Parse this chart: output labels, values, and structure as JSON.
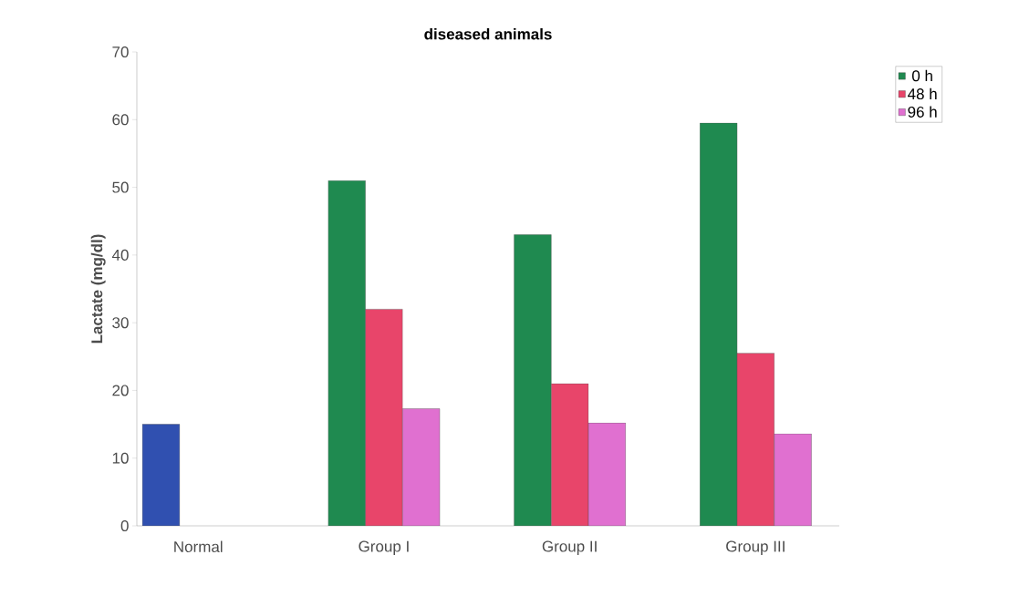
{
  "chart_data": {
    "type": "bar",
    "title": "diseased animals",
    "ylabel": "Lactate (mg/dl)",
    "categories": [
      "Normal",
      "Group I",
      "Group II",
      "Group III"
    ],
    "series": [
      {
        "name": "0 h",
        "color": "#1f8a50",
        "colors": [
          "#3050b0",
          "#1f8a50",
          "#1f8a50",
          "#1f8a50"
        ],
        "values": [
          15,
          51,
          43,
          59.5
        ]
      },
      {
        "name": "48 h",
        "color": "#e8456a",
        "values": [
          null,
          32,
          21,
          25.5
        ]
      },
      {
        "name": "96 h",
        "color": "#e070d0",
        "values": [
          null,
          17.3,
          15.2,
          13.6
        ]
      }
    ],
    "ylim": [
      0,
      70
    ],
    "yticks": [
      0,
      10,
      20,
      30,
      40,
      50,
      60,
      70
    ],
    "grid": false,
    "legend": "top right"
  }
}
